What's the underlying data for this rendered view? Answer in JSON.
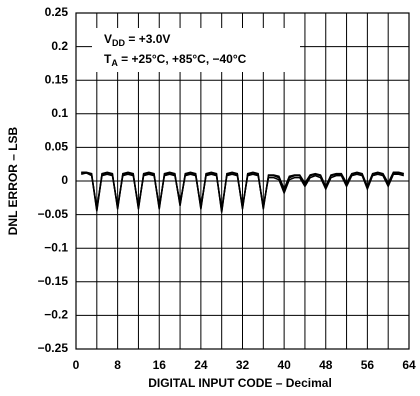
{
  "chart_data": {
    "type": "line",
    "xlabel": "DIGITAL INPUT CODE – Decimal",
    "ylabel": "DNL ERROR – LSB",
    "annotations": [
      [
        "V",
        "DD",
        " = +3.0V"
      ],
      [
        "T",
        "A",
        " = +25°C, +85°C, −40°C"
      ]
    ],
    "x": [
      1,
      2,
      3,
      4,
      5,
      6,
      7,
      8,
      9,
      10,
      11,
      12,
      13,
      14,
      15,
      16,
      17,
      18,
      19,
      20,
      21,
      22,
      23,
      24,
      25,
      26,
      27,
      28,
      29,
      30,
      31,
      32,
      33,
      34,
      35,
      36,
      37,
      38,
      39,
      40,
      41,
      42,
      43,
      44,
      45,
      46,
      47,
      48,
      49,
      50,
      51,
      52,
      53,
      54,
      55,
      56,
      57,
      58,
      59,
      60,
      61,
      62,
      63
    ],
    "series": [
      {
        "color": "#000000",
        "values": [
          0.012,
          0.012,
          0.01,
          -0.045,
          0.01,
          0.012,
          0.01,
          -0.04,
          0.01,
          0.012,
          0.01,
          -0.04,
          0.01,
          0.012,
          0.01,
          -0.04,
          0.01,
          0.012,
          0.01,
          -0.035,
          0.01,
          0.012,
          0.01,
          -0.04,
          0.01,
          0.012,
          0.01,
          -0.045,
          0.01,
          0.012,
          0.01,
          -0.04,
          0.01,
          0.012,
          0.01,
          -0.04,
          0.008,
          0.008,
          0.005,
          -0.015,
          0.005,
          0.008,
          0.008,
          -0.005,
          0.008,
          0.01,
          0.008,
          -0.01,
          0.008,
          0.01,
          0.01,
          -0.005,
          0.01,
          0.012,
          0.01,
          -0.01,
          0.01,
          0.012,
          0.01,
          -0.005,
          0.012,
          0.012,
          0.01
        ]
      },
      {
        "color": "#000000",
        "values": [
          0.01,
          0.012,
          0.008,
          -0.04,
          0.008,
          0.01,
          0.008,
          -0.038,
          0.008,
          0.01,
          0.008,
          -0.038,
          0.008,
          0.01,
          0.008,
          -0.038,
          0.008,
          0.01,
          0.008,
          -0.033,
          0.008,
          0.01,
          0.008,
          -0.038,
          0.008,
          0.01,
          0.008,
          -0.042,
          0.008,
          0.01,
          0.008,
          -0.038,
          0.008,
          0.01,
          0.008,
          -0.038,
          0.005,
          0.005,
          0.002,
          -0.018,
          0.002,
          0.005,
          0.005,
          -0.008,
          0.005,
          0.008,
          0.005,
          -0.012,
          0.005,
          0.008,
          0.008,
          -0.008,
          0.008,
          0.01,
          0.008,
          -0.012,
          0.008,
          0.01,
          0.008,
          -0.008,
          0.01,
          0.01,
          0.008
        ]
      },
      {
        "color": "#000000",
        "values": [
          0.013,
          0.013,
          0.011,
          -0.043,
          0.011,
          0.013,
          0.011,
          -0.042,
          0.011,
          0.013,
          0.011,
          -0.042,
          0.011,
          0.013,
          0.011,
          -0.042,
          0.011,
          0.013,
          0.011,
          -0.037,
          0.011,
          0.013,
          0.011,
          -0.042,
          0.011,
          0.013,
          0.011,
          -0.047,
          0.011,
          0.013,
          0.011,
          -0.042,
          0.011,
          0.013,
          0.011,
          -0.042,
          0.009,
          0.009,
          0.007,
          -0.012,
          0.007,
          0.009,
          0.009,
          -0.003,
          0.009,
          0.011,
          0.009,
          -0.008,
          0.009,
          0.011,
          0.011,
          -0.003,
          0.011,
          0.013,
          0.011,
          -0.008,
          0.011,
          0.013,
          0.011,
          -0.003,
          0.013,
          0.013,
          0.011
        ]
      }
    ],
    "xlim": [
      0,
      64
    ],
    "xticks": [
      0,
      8,
      16,
      24,
      32,
      40,
      48,
      56,
      64
    ],
    "xminorticks": [
      4,
      12,
      20,
      28,
      36,
      44,
      52,
      60
    ],
    "ylim": [
      -0.25,
      0.25
    ],
    "yticks": [
      {
        "value": -0.25,
        "label": "−0.25"
      },
      {
        "value": -0.2,
        "label": "−0.2"
      },
      {
        "value": -0.15,
        "label": "−0.15"
      },
      {
        "value": -0.1,
        "label": "−0.1"
      },
      {
        "value": -0.05,
        "label": "−0.05"
      },
      0,
      0.05,
      0.1,
      0.15,
      0.2,
      0.25
    ],
    "grid": true
  }
}
